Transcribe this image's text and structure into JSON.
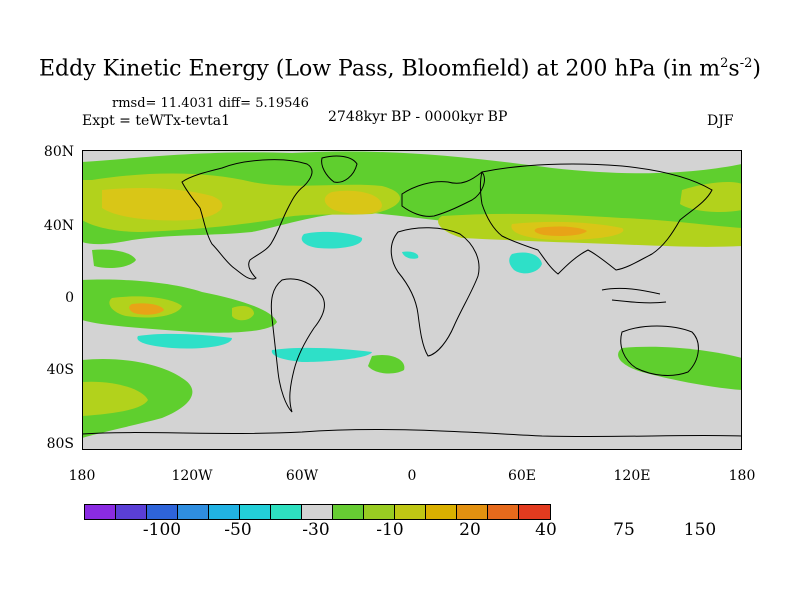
{
  "title": {
    "main": "Eddy Kinetic Energy (Low Pass, Bloomfield) at 200 hPa (in m",
    "sup1": "2",
    "mid": "s",
    "sup2": "-2",
    "end": ")"
  },
  "stats": {
    "rmsd": "rmsd= 11.4031 diff= 5.19546",
    "expt": "Expt = teWTx-tevta1",
    "period": "2748kyr BP - 0000kyr BP",
    "season": "DJF"
  },
  "axes": {
    "lat_labels": [
      "80N",
      "40N",
      "0",
      "40S",
      "80S"
    ],
    "lon_labels": [
      "180",
      "120W",
      "60W",
      "0",
      "60E",
      "120E",
      "180"
    ]
  },
  "colorbar": {
    "colors": [
      "#8a2be2",
      "#5a3fd6",
      "#2e64d9",
      "#2f8ee0",
      "#21b2e3",
      "#23cfd8",
      "#2ee0c0",
      "#d3d3d3",
      "#66cc33",
      "#99cc22",
      "#bfc714",
      "#dab000",
      "#e39110",
      "#e66a1c",
      "#e23b1f"
    ],
    "labels": [
      "-100",
      "-50",
      "-30",
      "-10",
      "20",
      "40",
      "75",
      "150"
    ]
  },
  "legend_colors": {
    "background": "#d3d3d3",
    "green": "#5fcf2e",
    "yellowgreen": "#b2d21c",
    "yellow": "#d9c617",
    "orange": "#e8a317",
    "cyan": "#2ee0c8"
  }
}
